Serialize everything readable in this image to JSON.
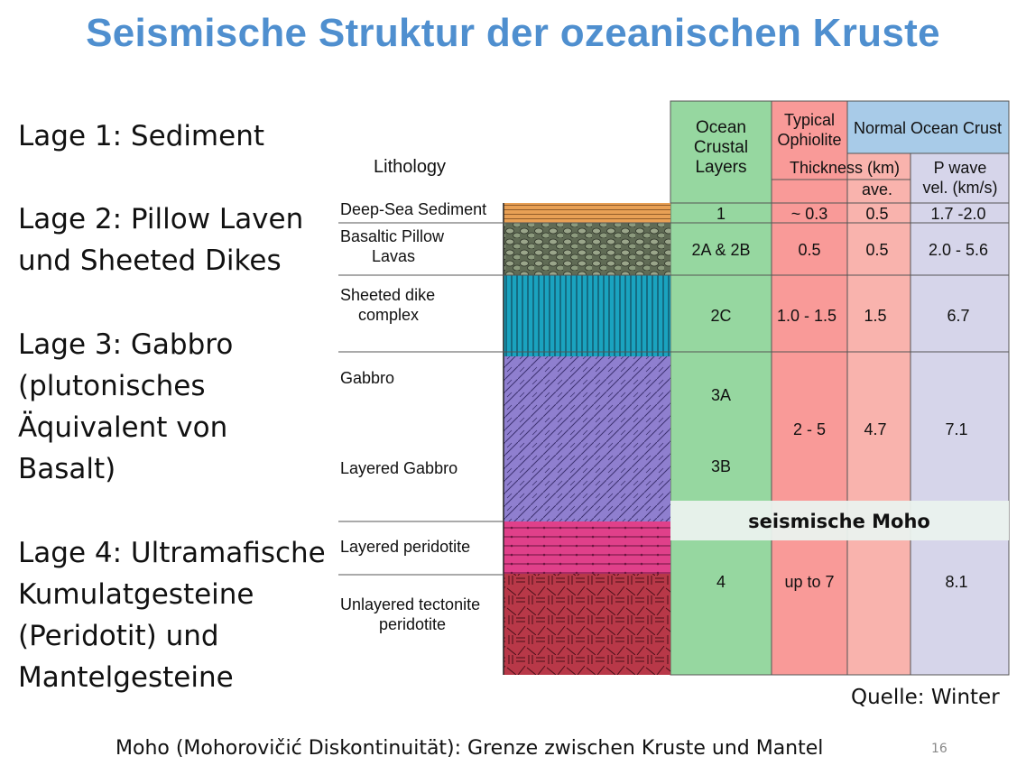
{
  "title": "Seismische Struktur der ozeanischen Kruste",
  "layers": [
    {
      "lines": [
        "Lage 1: Sediment"
      ]
    },
    {
      "lines": [
        "Lage 2: Pillow Laven",
        "und Sheeted Dikes"
      ]
    },
    {
      "lines": [
        "Lage 3: Gabbro",
        "(plutonisches",
        "Äquivalent von",
        "Basalt)"
      ]
    },
    {
      "lines": [
        "Lage 4: Ultramafische",
        "Kumulatgesteine",
        "(Peridotit) und",
        "Mantelgesteine"
      ]
    }
  ],
  "figure": {
    "lithology_header": "Lithology",
    "lithology_labels": {
      "sediment": "Deep-Sea Sediment",
      "pillow_1": "Basaltic Pillow",
      "pillow_2": "Lavas",
      "dike_1": "Sheeted dike",
      "dike_2": "complex",
      "gabbro": "Gabbro",
      "layered_gabbro": "Layered Gabbro",
      "layered_peridotite": "Layered peridotite",
      "tectonite_1": "Unlayered tectonite",
      "tectonite_2": "peridotite"
    },
    "headers": {
      "ocean_1": "Ocean",
      "ocean_2": "Crustal",
      "ocean_3": "Layers",
      "ophiolite_1": "Typical",
      "ophiolite_2": "Ophiolite",
      "normal_crust": "Normal Ocean Crust",
      "thickness": "Thickness (km)",
      "ave": "ave.",
      "pwave_1": "P wave",
      "pwave_2": "vel. (km/s)"
    },
    "rows": {
      "sediment": {
        "layer": "1",
        "ophiolite": "~ 0.3",
        "ave": "0.5",
        "vp": "1.7 -2.0"
      },
      "pillow": {
        "layer": "2A & 2B",
        "ophiolite": "0.5",
        "ave": "0.5",
        "vp": "2.0 - 5.6"
      },
      "dikes": {
        "layer": "2C",
        "ophiolite": "1.0 - 1.5",
        "ave": "1.5",
        "vp": "6.7"
      },
      "gabbro": {
        "layer_a": "3A",
        "layer_b": "3B",
        "ophiolite": "2 - 5",
        "ave": "4.7",
        "vp": "7.1"
      },
      "mantle": {
        "layer": "4",
        "ophiolite": "up to 7",
        "vp": "8.1"
      }
    },
    "moho_label": "seismische Moho",
    "colors": {
      "ocean_column": "#96d7a0",
      "ophiolite_column": "#f99a98",
      "ave_column": "#f9b3ad",
      "pwave_column": "#d6d5ea",
      "normal_header": "#a8cbe8",
      "sediment": "#e8a055",
      "pillow": "#7c8a6e",
      "dikes": "#1aa3bf",
      "gabbro": "#8f7fcf",
      "layered_peridotite": "#e0408a",
      "tectonite": "#b83848"
    }
  },
  "source": "Quelle: Winter",
  "footnote": "Moho (Mohorovičić Diskontinuität): Grenze zwischen Kruste und Mantel",
  "page_number": "16"
}
